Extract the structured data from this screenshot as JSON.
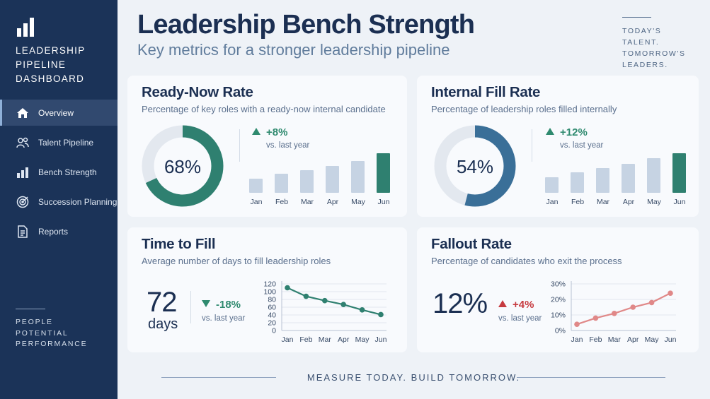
{
  "sidebar": {
    "title": "Leadership Pipeline Dashboard",
    "items": [
      {
        "label": "Overview",
        "icon": "home-icon",
        "active": true
      },
      {
        "label": "Talent Pipeline",
        "icon": "people-icon",
        "active": false
      },
      {
        "label": "Bench Strength",
        "icon": "bar-chart-icon",
        "active": false
      },
      {
        "label": "Succession Planning",
        "icon": "target-icon",
        "active": false
      },
      {
        "label": "Reports",
        "icon": "document-icon",
        "active": false
      }
    ],
    "footer": [
      "People",
      "Potential",
      "Performance"
    ]
  },
  "header": {
    "title": "Leadership Bench Strength",
    "subtitle": "Key metrics for a stronger leadership pipeline",
    "tagline": [
      "Today's talent.",
      "Tomorrow's",
      "leaders."
    ]
  },
  "cards": {
    "ready_now": {
      "title": "Ready-Now Rate",
      "desc": "Percentage of key roles with a ready-now internal candidate",
      "value": "68%",
      "ring_fraction": 0.68,
      "delta": "+8%",
      "delta_sub": "vs. last year"
    },
    "internal_fill": {
      "title": "Internal Fill Rate",
      "desc": "Percentage of leadership roles filled internally",
      "value": "54%",
      "ring_fraction": 0.54,
      "delta": "+12%",
      "delta_sub": "vs. last year"
    },
    "time_to_fill": {
      "title": "Time to Fill",
      "desc": "Average number of days to fill leadership roles",
      "value": "72",
      "unit": "days",
      "delta": "-18%",
      "delta_sub": "vs. last year"
    },
    "fallout": {
      "title": "Fallout Rate",
      "desc": "Percentage of candidates who exit the process",
      "value": "12%",
      "delta": "+4%",
      "delta_sub": "vs. last year"
    }
  },
  "colors": {
    "navy": "#1b3358",
    "teal": "#2f8070",
    "blue": "#3a6f98",
    "red": "#c63a3f",
    "bar_grey": "#c6d3e3"
  },
  "chart_data": [
    {
      "type": "bar",
      "categories": [
        "Jan",
        "Feb",
        "Mar",
        "Apr",
        "May",
        "Jun"
      ],
      "values": [
        35,
        48,
        58,
        68,
        80,
        100
      ],
      "highlight_last": true,
      "axes_visible": false
    },
    {
      "type": "bar",
      "categories": [
        "Jan",
        "Feb",
        "Mar",
        "Apr",
        "May",
        "Jun"
      ],
      "values": [
        40,
        52,
        63,
        73,
        88,
        100
      ],
      "highlight_last": true,
      "axes_visible": false
    },
    {
      "type": "line",
      "x": [
        "Jan",
        "Feb",
        "Mar",
        "Apr",
        "May",
        "Jun"
      ],
      "y": [
        110,
        88,
        77,
        67,
        53,
        41
      ],
      "ylim": [
        0,
        120
      ],
      "yticks": [
        "120",
        "100",
        "80",
        "60",
        "40",
        "20",
        "0"
      ],
      "grid": true
    },
    {
      "type": "line",
      "x": [
        "Jan",
        "Feb",
        "Mar",
        "Apr",
        "May",
        "Jun"
      ],
      "y": [
        4,
        8,
        11,
        15,
        18,
        24
      ],
      "ylim": [
        0,
        30
      ],
      "yticks": [
        "30%",
        "20%",
        "10%",
        "0%"
      ],
      "grid": true
    }
  ],
  "footer": "Measure today. Build tomorrow."
}
